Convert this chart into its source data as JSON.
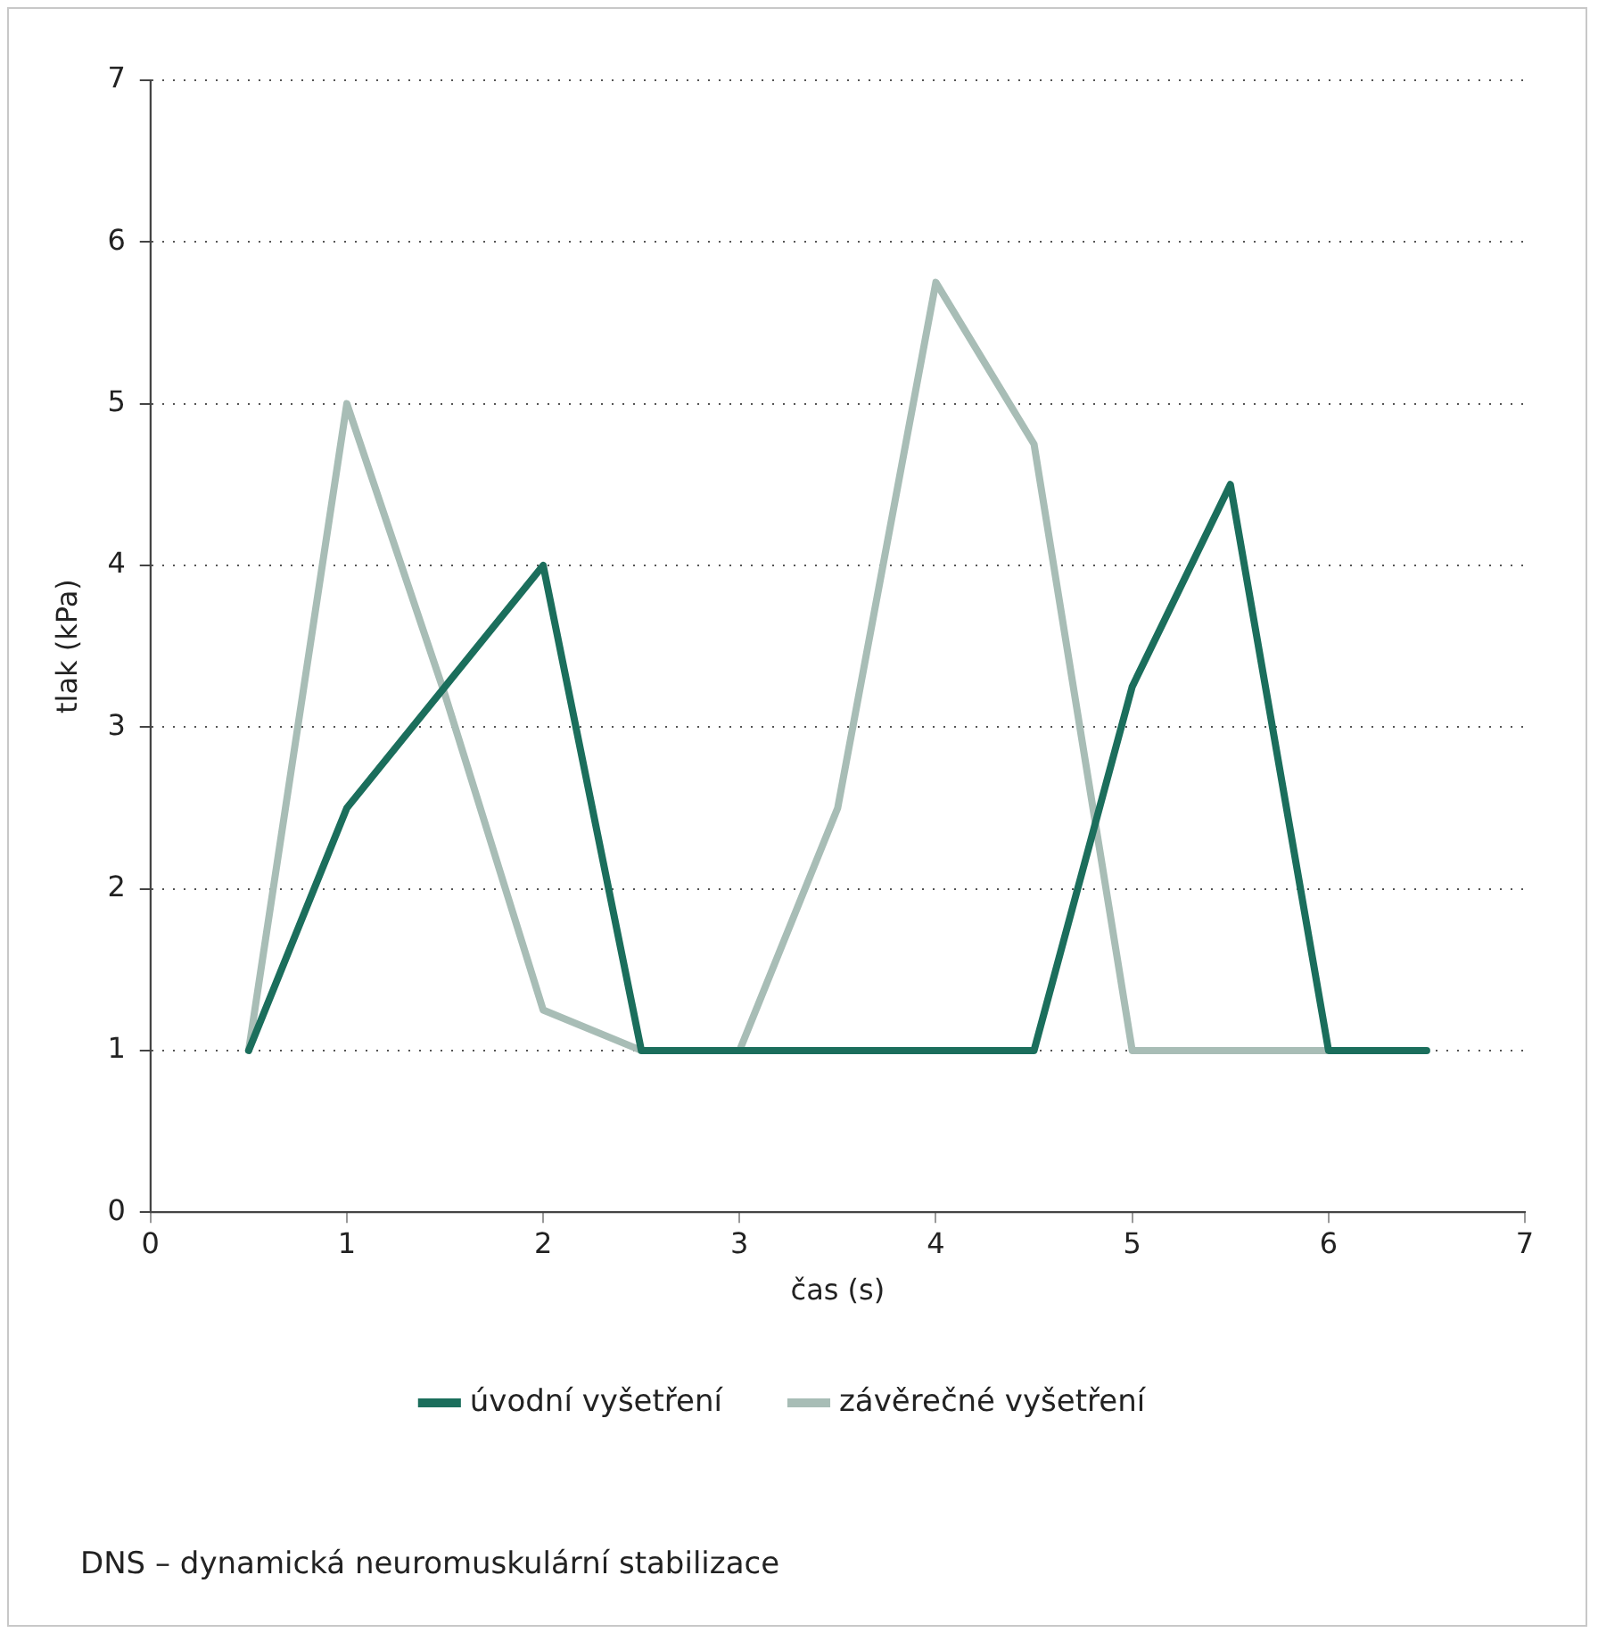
{
  "chart_data": {
    "type": "line",
    "xlabel": "čas (s)",
    "ylabel": "tlak (kPa)",
    "x": [
      0.5,
      1,
      1.5,
      2,
      2.5,
      3,
      3.5,
      4,
      4.5,
      5,
      5.5,
      6,
      6.5
    ],
    "series": [
      {
        "name": "úvodní vyšetření",
        "color": "#1b6e5c",
        "values": [
          1,
          2.5,
          3.25,
          4,
          1,
          1,
          1,
          1,
          1,
          3.25,
          4.5,
          1,
          1
        ]
      },
      {
        "name": "závěrečné vyšetření",
        "color": "#a8bdb6",
        "values": [
          1,
          5,
          3.2,
          1.25,
          1,
          1,
          2.5,
          5.75,
          4.75,
          1,
          1,
          1,
          null
        ]
      }
    ],
    "xlim": [
      0,
      7
    ],
    "xticks": [
      0,
      1,
      2,
      3,
      4,
      5,
      6,
      7
    ],
    "ylim": [
      0,
      7
    ],
    "yticks": [
      0,
      1,
      2,
      3,
      4,
      5,
      6,
      7
    ],
    "grid": "y",
    "legend": "bottom",
    "marker": "none",
    "line_style": "solid",
    "annotations": [
      "DNS – dynamická neuromuskulární stabilizace"
    ]
  }
}
